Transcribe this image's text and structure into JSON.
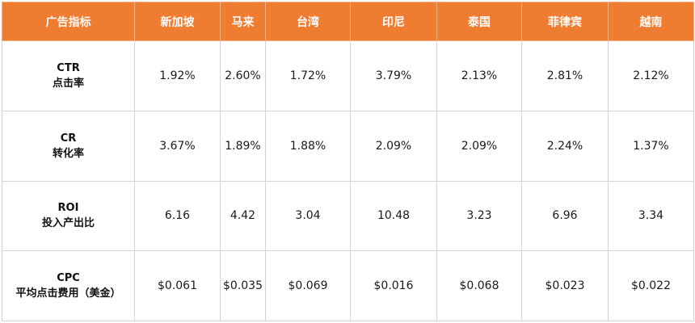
{
  "table": {
    "header": {
      "corner": "广告指标",
      "regions": [
        "新加坡",
        "马来",
        "台湾",
        "印尼",
        "泰国",
        "菲律宾",
        "越南"
      ]
    },
    "rows": [
      {
        "metric_en": "CTR",
        "metric_cn": "点击率",
        "values": [
          "1.92%",
          "2.60%",
          "1.72%",
          "3.79%",
          "2.13%",
          "2.81%",
          "2.12%"
        ]
      },
      {
        "metric_en": "CR",
        "metric_cn": "转化率",
        "values": [
          "3.67%",
          "1.89%",
          "1.88%",
          "2.09%",
          "2.09%",
          "2.24%",
          "1.37%"
        ]
      },
      {
        "metric_en": "ROI",
        "metric_cn": "投入产出比",
        "values": [
          "6.16",
          "4.42",
          "3.04",
          "10.48",
          "3.23",
          "6.96",
          "3.34"
        ]
      },
      {
        "metric_en": "CPC",
        "metric_cn": "平均点击费用（美金）",
        "values": [
          "$0.061",
          "$0.035",
          "$0.069",
          "$0.016",
          "$0.068",
          "$0.023",
          "$0.022"
        ]
      }
    ]
  },
  "colors": {
    "header_background": "#ef7d31",
    "header_text": "#ffffff",
    "grid_line": "#d4d4d4"
  }
}
